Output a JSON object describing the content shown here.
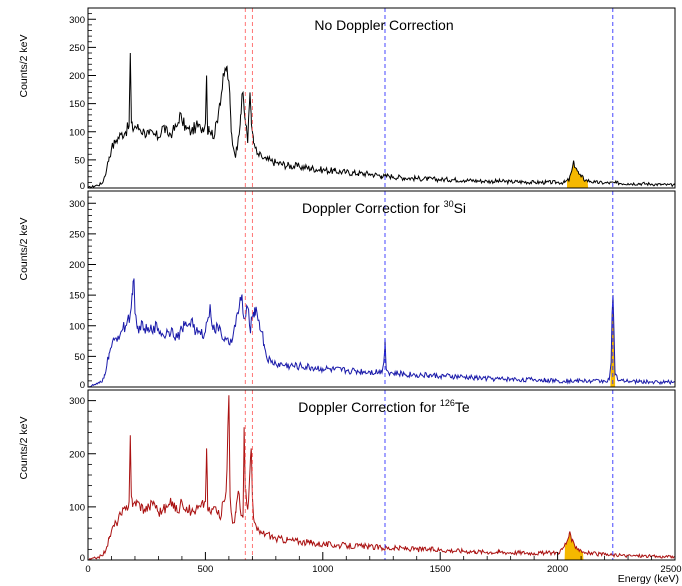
{
  "chart_data": [
    {
      "type": "line",
      "title": "No Doppler Correction",
      "ylabel": "Counts/2 keV",
      "xlim": [
        0,
        2500
      ],
      "ylim": [
        0,
        320
      ],
      "yticks": [
        0,
        50,
        100,
        150,
        200,
        250,
        300
      ],
      "line_color": "#000000",
      "shaded_peaks": [
        {
          "from": 2040,
          "to": 2130,
          "color": "#f5b800"
        }
      ],
      "vlines": [
        {
          "x": 670,
          "color": "#ff6666"
        },
        {
          "x": 700,
          "color": "#ff6666"
        },
        {
          "x": 1265,
          "color": "#3333ff"
        },
        {
          "x": 2235,
          "color": "#3333ff"
        }
      ],
      "series": [
        {
          "x": [
            0,
            40,
            60,
            70,
            80,
            90,
            100,
            120,
            140,
            160,
            175,
            180,
            185,
            190,
            200,
            220,
            240,
            260,
            280,
            300,
            320,
            340,
            360,
            380,
            390,
            400,
            420,
            440,
            460,
            480,
            500,
            505,
            510,
            515,
            520,
            540,
            560,
            580,
            590,
            600,
            605,
            610,
            620,
            630,
            640,
            650,
            660,
            665,
            670,
            675,
            680,
            690,
            695,
            700,
            705,
            710,
            720,
            740,
            760,
            780,
            800,
            850,
            900,
            950,
            1000,
            1050,
            1100,
            1150,
            1200,
            1250,
            1265,
            1280,
            1300,
            1350,
            1400,
            1450,
            1500,
            1550,
            1600,
            1650,
            1700,
            1750,
            1800,
            1850,
            1900,
            1950,
            2000,
            2030,
            2050,
            2060,
            2070,
            2080,
            2090,
            2100,
            2120,
            2140,
            2160,
            2200,
            2250,
            2300,
            2350,
            2400,
            2450,
            2500
          ],
          "y": [
            0,
            5,
            8,
            20,
            35,
            55,
            70,
            85,
            95,
            100,
            110,
            240,
            115,
            105,
            110,
            105,
            100,
            95,
            95,
            90,
            110,
            95,
            100,
            110,
            130,
            120,
            105,
            100,
            110,
            105,
            115,
            200,
            95,
            110,
            100,
            95,
            150,
            200,
            215,
            190,
            150,
            100,
            70,
            60,
            90,
            130,
            170,
            140,
            120,
            110,
            80,
            170,
            130,
            100,
            80,
            75,
            60,
            55,
            50,
            48,
            45,
            40,
            38,
            35,
            32,
            30,
            28,
            26,
            25,
            22,
            20,
            22,
            20,
            18,
            17,
            16,
            15,
            15,
            14,
            13,
            12,
            12,
            11,
            11,
            10,
            10,
            10,
            10,
            15,
            30,
            45,
            35,
            25,
            20,
            14,
            12,
            10,
            9,
            9,
            8,
            8,
            7,
            6,
            5
          ]
        }
      ]
    },
    {
      "type": "line",
      "title": "Doppler Correction for ",
      "title_sup": "30",
      "title_suffix": "Si",
      "ylabel": "Counts/2 keV",
      "xlim": [
        0,
        2500
      ],
      "ylim": [
        0,
        320
      ],
      "yticks": [
        0,
        50,
        100,
        150,
        200,
        250,
        300
      ],
      "line_color": "#1a1aaa",
      "shaded_peaks": [
        {
          "from": 2225,
          "to": 2245,
          "color": "#f5b800"
        }
      ],
      "vlines": [
        {
          "x": 670,
          "color": "#ff6666"
        },
        {
          "x": 700,
          "color": "#ff6666"
        },
        {
          "x": 1265,
          "color": "#3333ff"
        },
        {
          "x": 2235,
          "color": "#3333ff"
        }
      ],
      "series": [
        {
          "x": [
            0,
            40,
            60,
            70,
            80,
            90,
            100,
            120,
            140,
            160,
            180,
            190,
            195,
            200,
            210,
            220,
            240,
            260,
            280,
            300,
            320,
            340,
            360,
            380,
            400,
            420,
            440,
            460,
            480,
            500,
            520,
            530,
            540,
            560,
            580,
            600,
            620,
            640,
            650,
            655,
            660,
            670,
            680,
            690,
            700,
            710,
            720,
            730,
            740,
            750,
            760,
            780,
            800,
            850,
            900,
            950,
            1000,
            1050,
            1100,
            1150,
            1200,
            1250,
            1260,
            1265,
            1270,
            1280,
            1300,
            1350,
            1400,
            1450,
            1500,
            1550,
            1600,
            1650,
            1700,
            1750,
            1800,
            1850,
            1900,
            1950,
            2000,
            2050,
            2100,
            2150,
            2200,
            2220,
            2228,
            2232,
            2236,
            2240,
            2245,
            2260,
            2300,
            2350,
            2400,
            2450,
            2500
          ],
          "y": [
            0,
            5,
            8,
            20,
            35,
            55,
            65,
            80,
            90,
            100,
            120,
            150,
            175,
            120,
            95,
            100,
            95,
            90,
            100,
            95,
            85,
            90,
            95,
            80,
            95,
            100,
            110,
            90,
            85,
            90,
            135,
            100,
            90,
            100,
            75,
            70,
            90,
            120,
            145,
            150,
            120,
            110,
            130,
            95,
            110,
            130,
            120,
            105,
            90,
            70,
            50,
            40,
            38,
            35,
            34,
            32,
            30,
            28,
            27,
            26,
            25,
            25,
            40,
            80,
            30,
            24,
            22,
            21,
            20,
            19,
            18,
            17,
            16,
            15,
            14,
            13,
            13,
            12,
            12,
            11,
            10,
            10,
            10,
            10,
            10,
            12,
            40,
            120,
            150,
            90,
            20,
            10,
            9,
            9,
            8,
            8,
            8
          ]
        }
      ]
    },
    {
      "type": "line",
      "title": "Doppler Correction for ",
      "title_sup": "126",
      "title_suffix": "Te",
      "ylabel": "Counts/2 keV",
      "xlabel": "Energy (keV)",
      "xlim": [
        0,
        2500
      ],
      "ylim": [
        0,
        320
      ],
      "xticks": [
        0,
        500,
        1000,
        1500,
        2000,
        2500
      ],
      "yticks": [
        0,
        100,
        200,
        300
      ],
      "line_color": "#aa1111",
      "shaded_peaks": [
        {
          "from": 2030,
          "to": 2110,
          "color": "#f5b800"
        }
      ],
      "vlines": [
        {
          "x": 670,
          "color": "#ff6666"
        },
        {
          "x": 700,
          "color": "#ff6666"
        },
        {
          "x": 1265,
          "color": "#3333ff"
        },
        {
          "x": 2235,
          "color": "#3333ff"
        }
      ],
      "series": [
        {
          "x": [
            0,
            40,
            60,
            70,
            80,
            90,
            100,
            120,
            140,
            160,
            175,
            180,
            185,
            190,
            200,
            220,
            240,
            260,
            280,
            300,
            320,
            340,
            360,
            380,
            400,
            420,
            440,
            460,
            480,
            500,
            505,
            510,
            520,
            540,
            560,
            580,
            590,
            600,
            605,
            610,
            620,
            630,
            640,
            650,
            660,
            665,
            670,
            680,
            690,
            695,
            700,
            705,
            710,
            720,
            740,
            760,
            780,
            800,
            850,
            900,
            950,
            1000,
            1050,
            1100,
            1150,
            1200,
            1250,
            1300,
            1350,
            1400,
            1450,
            1500,
            1550,
            1600,
            1650,
            1700,
            1750,
            1800,
            1850,
            1900,
            1950,
            2000,
            2020,
            2040,
            2050,
            2060,
            2080,
            2100,
            2120,
            2150,
            2200,
            2250,
            2300,
            2350,
            2400,
            2450,
            2500
          ],
          "y": [
            0,
            5,
            8,
            15,
            25,
            40,
            55,
            70,
            85,
            95,
            110,
            235,
            120,
            100,
            110,
            105,
            95,
            100,
            110,
            90,
            95,
            100,
            110,
            90,
            110,
            100,
            90,
            95,
            100,
            110,
            210,
            95,
            90,
            100,
            80,
            110,
            150,
            310,
            120,
            90,
            70,
            90,
            130,
            90,
            80,
            250,
            130,
            95,
            170,
            210,
            120,
            80,
            70,
            55,
            50,
            50,
            45,
            40,
            38,
            35,
            32,
            30,
            28,
            27,
            26,
            25,
            23,
            22,
            22,
            20,
            20,
            19,
            18,
            17,
            16,
            15,
            15,
            14,
            14,
            13,
            13,
            14,
            20,
            35,
            50,
            35,
            25,
            18,
            14,
            12,
            10,
            9,
            8,
            8,
            7,
            6,
            6
          ]
        }
      ]
    }
  ]
}
